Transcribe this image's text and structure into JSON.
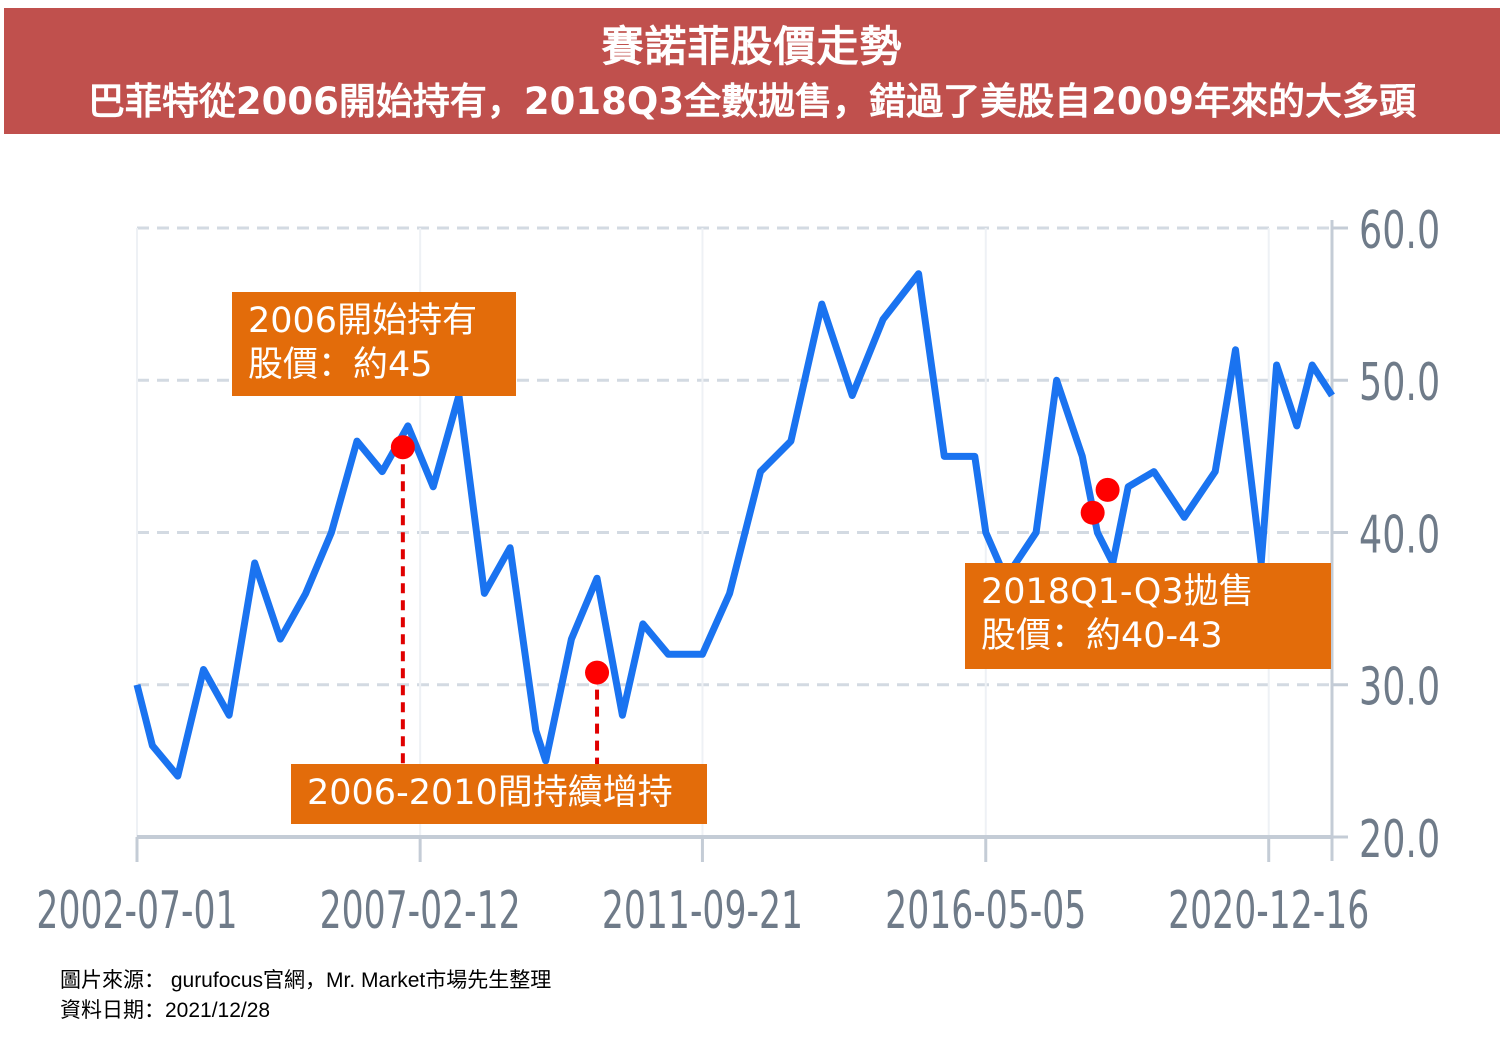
{
  "header": {
    "title": "賽諾菲股價走勢",
    "subtitle": "巴菲特從2006開始持有，2018Q3全數拋售，錯過了美股自2009年來的大多頭"
  },
  "colors": {
    "header_bg": "#c0504d",
    "line": "#1a73f0",
    "callout_bg": "#e36c0a",
    "marker": "#ff0000"
  },
  "chart_data": {
    "type": "line",
    "x_tick_labels": [
      "2002-07-01",
      "2007-02-12",
      "2011-09-21",
      "2016-05-05",
      "2020-12-16"
    ],
    "y_tick_labels": [
      "60.0",
      "50.0",
      "40.0",
      "30.0",
      "20.0"
    ],
    "ylim": [
      20,
      60
    ],
    "xlim": [
      "2002-07-01",
      "2021-12-28"
    ],
    "y_axis_side": "right",
    "grid": "horizontal dashed",
    "series": [
      {
        "x": [
          "2002-07-01",
          "2002-10-01",
          "2003-03-01",
          "2003-08-01",
          "2004-01-01",
          "2004-06-01",
          "2004-11-01",
          "2005-04-01",
          "2005-09-01",
          "2006-02-01",
          "2006-07-01",
          "2006-12-01",
          "2007-05-01",
          "2007-10-01",
          "2008-03-01",
          "2008-08-01",
          "2009-01-01",
          "2009-03-01",
          "2009-08-01",
          "2010-01-01",
          "2010-06-01",
          "2010-10-01",
          "2011-03-01",
          "2011-09-21",
          "2012-03-01",
          "2012-09-01",
          "2013-03-01",
          "2013-09-01",
          "2014-03-01",
          "2014-09-01",
          "2015-04-01",
          "2015-09-01",
          "2016-03-01",
          "2016-05-05",
          "2016-09-01",
          "2017-03-01",
          "2017-07-01",
          "2017-12-01",
          "2018-03-01",
          "2018-06-01",
          "2018-09-01",
          "2019-02-01",
          "2019-08-01",
          "2020-02-01",
          "2020-06-01",
          "2020-11-01",
          "2021-02-01",
          "2021-06-01",
          "2021-09-01",
          "2021-12-28"
        ],
        "y": [
          30,
          26,
          24,
          31,
          28,
          38,
          33,
          36,
          40,
          46,
          44,
          47,
          43,
          49,
          36,
          39,
          27,
          25,
          33,
          37,
          28,
          34,
          32,
          32,
          36,
          44,
          46,
          55,
          49,
          54,
          57,
          45,
          45,
          40,
          37,
          40,
          50,
          45,
          40,
          38,
          43,
          44,
          41,
          44,
          52,
          38,
          51,
          47,
          51,
          49
        ]
      }
    ],
    "highlight_points": [
      {
        "x": "2006-11-01",
        "y": 45.6
      },
      {
        "x": "2010-01-01",
        "y": 30.8
      },
      {
        "x": "2018-02-01",
        "y": 41.3
      },
      {
        "x": "2018-05-01",
        "y": 42.8
      }
    ],
    "annotations": [
      {
        "lines": [
          "2006開始持有",
          "股價：約45"
        ]
      },
      {
        "lines": [
          "2006-2010間持續增持"
        ]
      },
      {
        "lines": [
          "2018Q1-Q3拋售",
          "股價：約40-43"
        ]
      }
    ]
  },
  "footer": {
    "source": "圖片來源： gurufocus官網，Mr. Market市場先生整理",
    "date": "資料日期：2021/12/28"
  }
}
